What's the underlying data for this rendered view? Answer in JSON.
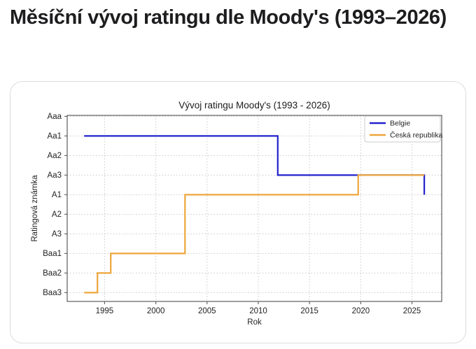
{
  "page": {
    "title": "Měsíční vývoj ratingu dle Moody's (1993–2026)"
  },
  "colors": {
    "belgie": "#2222cc",
    "ceska_republika": "#eda63c",
    "grid": "#c9c9c9",
    "spine": "#66696c",
    "tick_text": "#222222",
    "title_text": "#1a1a1a"
  },
  "chart_data": {
    "type": "line",
    "subtype": "step",
    "title": "Vývoj ratingu Moody's (1993 - 2026)",
    "xlabel": "Rok",
    "ylabel": "Ratingová známka",
    "x_ticks": [
      1995,
      2000,
      2005,
      2010,
      2015,
      2020,
      2025
    ],
    "y_categories": [
      "Aaa",
      "Aa1",
      "Aa2",
      "Aa3",
      "A1",
      "A2",
      "A3",
      "Baa1",
      "Baa2",
      "Baa3"
    ],
    "xlim": [
      1991.35,
      2027.9
    ],
    "ylim_index": [
      -0.05,
      9.45
    ],
    "grid": true,
    "legend_position": "upper right",
    "series": [
      {
        "name": "Belgie",
        "color": "#2222cc",
        "points": [
          [
            1993.0,
            "Aa1"
          ],
          [
            2011.9,
            "Aa1"
          ],
          [
            2011.9,
            "Aa3"
          ],
          [
            2026.2,
            "Aa3"
          ],
          [
            2026.2,
            "A1"
          ]
        ]
      },
      {
        "name": "Česká republika",
        "color": "#eda63c",
        "points": [
          [
            1993.0,
            "Baa3"
          ],
          [
            1994.3,
            "Baa3"
          ],
          [
            1994.3,
            "Baa2"
          ],
          [
            1995.6,
            "Baa2"
          ],
          [
            1995.6,
            "Baa1"
          ],
          [
            2002.85,
            "Baa1"
          ],
          [
            2002.85,
            "A1"
          ],
          [
            2019.75,
            "A1"
          ],
          [
            2019.75,
            "Aa3"
          ],
          [
            2026.2,
            "Aa3"
          ]
        ]
      }
    ]
  }
}
